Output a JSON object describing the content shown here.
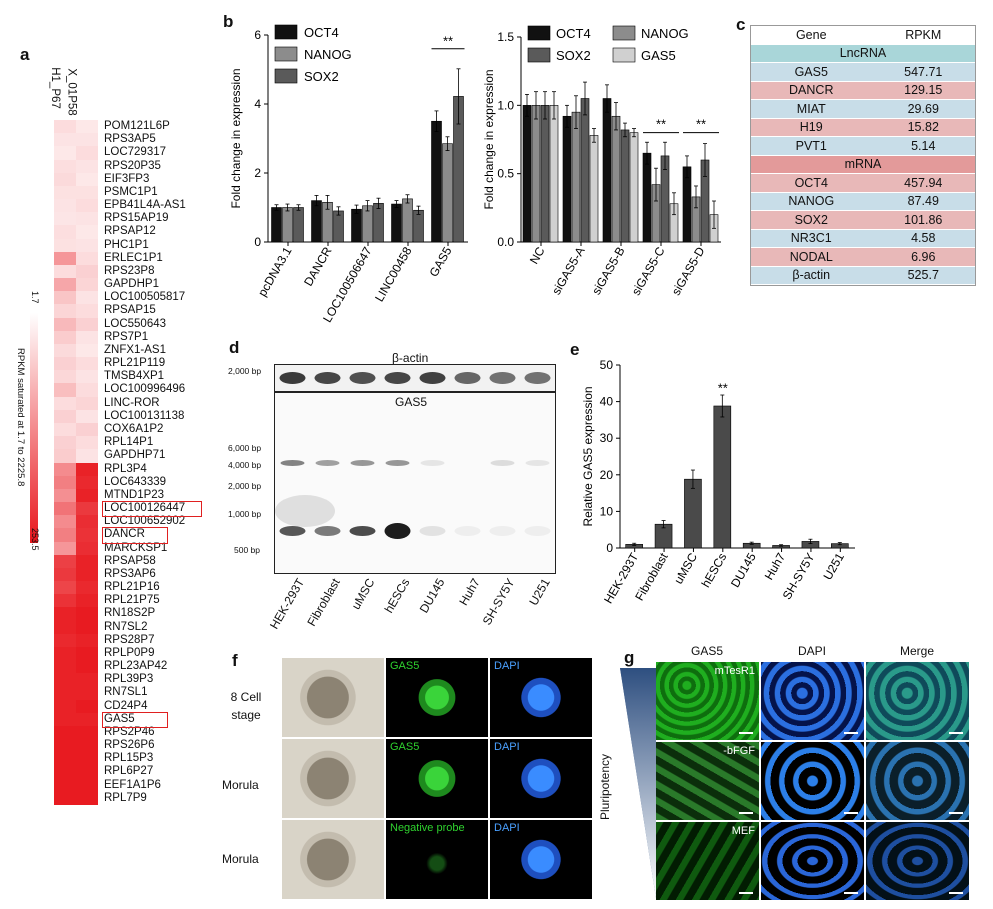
{
  "panels": {
    "a": "a",
    "b": "b",
    "c": "c",
    "d": "d",
    "e": "e",
    "f": "f",
    "g": "g"
  },
  "heatmap": {
    "columns": [
      "H1_P67",
      "X_01P58"
    ],
    "scale_label": "RPKM saturated at 1.7 to 2225.8",
    "scale_top": "1.7",
    "scale_bottom": "253.5",
    "colors": {
      "low": "#ffffff",
      "high": "#e8161c"
    },
    "genes": [
      "POM121L6P",
      "RPS3AP5",
      "LOC729317",
      "RPS20P35",
      "EIF3FP3",
      "PSMC1P1",
      "EPB41L4A-AS1",
      "RPS15AP19",
      "RPSAP12",
      "PHC1P1",
      "ERLEC1P1",
      "RPS23P8",
      "GAPDHP1",
      "LOC100505817",
      "RPSAP15",
      "LOC550643",
      "RPS7P1",
      "ZNFX1-AS1",
      "RPL21P119",
      "TMSB4XP1",
      "LOC100996496",
      "LINC-ROR",
      "LOC100131138",
      "COX6A1P2",
      "RPL14P1",
      "GAPDHP71",
      "RPL3P4",
      "LOC643339",
      "MTND1P23",
      "LOC100126447",
      "LOC100652902",
      "DANCR",
      "MARCKSP1",
      "RPSAP58",
      "RPS3AP6",
      "RPL21P16",
      "RPL21P75",
      "RN18S2P",
      "RN7SL2",
      "RPS28P7",
      "RPLP0P9",
      "RPL23AP42",
      "RPL39P3",
      "RN7SL1",
      "CD24P4",
      "GAS5",
      "RPS2P46",
      "RPS26P6",
      "RPL15P3",
      "RPL6P27",
      "EEF1A1P6",
      "RPL7P9"
    ],
    "highlighted": [
      "LOC100126447",
      "DANCR",
      "GAS5"
    ],
    "intensity_col1": [
      0.15,
      0.12,
      0.1,
      0.14,
      0.16,
      0.13,
      0.12,
      0.11,
      0.14,
      0.13,
      0.45,
      0.15,
      0.38,
      0.25,
      0.18,
      0.3,
      0.22,
      0.16,
      0.2,
      0.17,
      0.28,
      0.15,
      0.2,
      0.15,
      0.2,
      0.22,
      0.5,
      0.55,
      0.48,
      0.6,
      0.5,
      0.55,
      0.45,
      0.82,
      0.85,
      0.8,
      0.88,
      0.95,
      0.95,
      0.92,
      0.95,
      0.95,
      0.95,
      0.95,
      0.95,
      0.95,
      0.98,
      0.98,
      0.98,
      0.98,
      0.98,
      0.98
    ],
    "intensity_col2": [
      0.1,
      0.12,
      0.15,
      0.12,
      0.1,
      0.13,
      0.15,
      0.12,
      0.1,
      0.12,
      0.15,
      0.2,
      0.18,
      0.12,
      0.15,
      0.2,
      0.12,
      0.1,
      0.15,
      0.12,
      0.15,
      0.18,
      0.12,
      0.2,
      0.15,
      0.12,
      0.95,
      0.92,
      0.95,
      0.85,
      0.9,
      0.88,
      0.9,
      0.95,
      0.95,
      0.92,
      0.95,
      0.98,
      0.98,
      0.95,
      0.98,
      0.98,
      0.95,
      0.95,
      0.98,
      0.95,
      0.98,
      0.98,
      0.98,
      0.98,
      0.98,
      0.98
    ]
  },
  "table_c": {
    "header": [
      "Gene",
      "RPKM"
    ],
    "lnc_title": "LncRNA",
    "lnc_rows": [
      [
        "GAS5",
        "547.71"
      ],
      [
        "DANCR",
        "129.15"
      ],
      [
        "MIAT",
        "29.69"
      ],
      [
        "H19",
        "15.82"
      ],
      [
        "PVT1",
        "5.14"
      ]
    ],
    "mrna_title": "mRNA",
    "mrna_rows": [
      [
        "OCT4",
        "457.94"
      ],
      [
        "NANOG",
        "87.49"
      ],
      [
        "SOX2",
        "101.86"
      ],
      [
        "NR3C1",
        "4.58"
      ],
      [
        "NODAL",
        "6.96"
      ],
      [
        "β-actin",
        "525.7"
      ]
    ],
    "colors": {
      "blue": "#c8dde8",
      "pink": "#e8b8b8",
      "blue_title": "#a9d6d9",
      "pink_title": "#e39a9a"
    }
  },
  "blot_d": {
    "top_title": "β-actin",
    "top_marker": "2,000 bp",
    "bottom_title": "GAS5",
    "markers": [
      "6,000 bp",
      "4,000 bp",
      "2,000 bp",
      "1,000 bp",
      "500 bp"
    ],
    "lanes": [
      "HEK-293T",
      "Fibroblast",
      "uMSC",
      "hESCs",
      "DU145",
      "Huh7",
      "SH-SY5Y",
      "U251"
    ]
  },
  "panel_f": {
    "rows": [
      "8 Cell\nstage",
      "Morula",
      "Morula"
    ],
    "row_labels": [
      "8 Cell stage",
      "Morula",
      "Morula"
    ],
    "green_labels": [
      "GAS5",
      "GAS5",
      "Negative probe"
    ],
    "blue_labels": [
      "DAPI",
      "DAPI",
      "DAPI"
    ]
  },
  "panel_g": {
    "columns": [
      "GAS5",
      "DAPI",
      "Merge"
    ],
    "conditions": [
      "mTesR1",
      "-bFGF",
      "MEF"
    ],
    "side_label": "Pluripotency"
  },
  "chart_data": [
    {
      "type": "bar",
      "panel": "b-left",
      "categories": [
        "pcDNA3.1",
        "DANCR",
        "LOC100506647",
        "LINC00458",
        "GAS5"
      ],
      "series": [
        {
          "name": "OCT4",
          "values": [
            1.0,
            1.2,
            0.95,
            1.1,
            3.5
          ],
          "errors": [
            0.08,
            0.15,
            0.12,
            0.1,
            0.3
          ],
          "color": "#111111"
        },
        {
          "name": "NANOG",
          "values": [
            1.0,
            1.15,
            1.05,
            1.25,
            2.85
          ],
          "errors": [
            0.1,
            0.2,
            0.15,
            0.12,
            0.2
          ],
          "color": "#8c8c8c"
        },
        {
          "name": "SOX2",
          "values": [
            1.0,
            0.9,
            1.12,
            0.92,
            4.22
          ],
          "errors": [
            0.08,
            0.12,
            0.15,
            0.12,
            0.8
          ],
          "color": "#5a5a5a"
        }
      ],
      "ylabel": "Fold change in expression",
      "ylim": [
        0,
        6
      ],
      "yticks": [
        0,
        2,
        4,
        6
      ],
      "annotation": "**"
    },
    {
      "type": "bar",
      "panel": "b-right",
      "categories": [
        "NC",
        "siGAS5-A",
        "siGAS5-B",
        "siGAS5-C",
        "siGAS5-D"
      ],
      "series": [
        {
          "name": "OCT4",
          "values": [
            1.0,
            0.92,
            1.05,
            0.65,
            0.55
          ],
          "errors": [
            0.08,
            0.08,
            0.1,
            0.08,
            0.08
          ],
          "color": "#111111"
        },
        {
          "name": "NANOG",
          "values": [
            1.0,
            0.95,
            0.92,
            0.42,
            0.33
          ],
          "errors": [
            0.1,
            0.12,
            0.1,
            0.12,
            0.08
          ],
          "color": "#8c8c8c"
        },
        {
          "name": "SOX2",
          "values": [
            1.0,
            1.05,
            0.82,
            0.63,
            0.6
          ],
          "errors": [
            0.1,
            0.12,
            0.05,
            0.1,
            0.12
          ],
          "color": "#5a5a5a"
        },
        {
          "name": "GAS5",
          "values": [
            1.0,
            0.78,
            0.8,
            0.28,
            0.2
          ],
          "errors": [
            0.1,
            0.05,
            0.03,
            0.08,
            0.1
          ],
          "color": "#d0d0d0"
        }
      ],
      "ylabel": "Fold change in expression",
      "ylim": [
        0,
        1.5
      ],
      "yticks": [
        0.0,
        0.5,
        1.0,
        1.5
      ],
      "annotations": [
        "**",
        "**"
      ]
    },
    {
      "type": "bar",
      "panel": "e",
      "categories": [
        "HEK-293T",
        "Fibroblast",
        "uMSC",
        "hESCs",
        "DU145",
        "Huh7",
        "SH-SY5Y",
        "U251"
      ],
      "values": [
        1.0,
        6.5,
        18.8,
        38.8,
        1.3,
        0.7,
        1.8,
        1.2
      ],
      "errors": [
        0.3,
        1.0,
        2.5,
        3.0,
        0.3,
        0.2,
        0.6,
        0.3
      ],
      "color": "#4a4a4a",
      "ylabel": "Relative GAS5 expression",
      "ylim": [
        0,
        50
      ],
      "yticks": [
        0,
        10,
        20,
        30,
        40,
        50
      ],
      "annotation": "**"
    }
  ]
}
